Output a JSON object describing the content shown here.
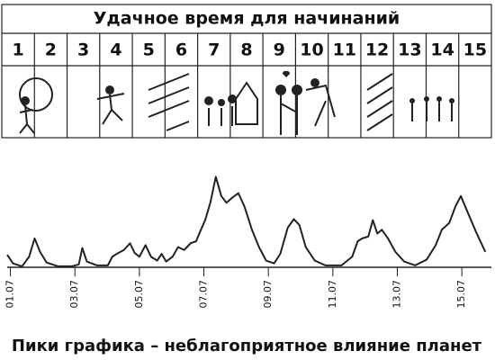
{
  "table": {
    "title": "Удачное время для начинаний",
    "days": [
      "1",
      "2",
      "3",
      "4",
      "5",
      "6",
      "7",
      "8",
      "9",
      "10",
      "11",
      "12",
      "13",
      "14",
      "15"
    ]
  },
  "chart_data": {
    "type": "line",
    "caption": "Пики графика – неблагоприятное влияние планет",
    "x": [
      0.9,
      1.08,
      1.36,
      1.58,
      1.75,
      1.92,
      2.12,
      2.48,
      2.9,
      3.12,
      3.23,
      3.37,
      3.68,
      4.02,
      4.16,
      4.3,
      4.52,
      4.71,
      4.85,
      5.0,
      5.19,
      5.36,
      5.55,
      5.69,
      5.83,
      6.03,
      6.2,
      6.39,
      6.59,
      6.76,
      6.87,
      7.04,
      7.2,
      7.37,
      7.54,
      7.7,
      7.87,
      8.07,
      8.26,
      8.49,
      8.71,
      8.93,
      9.18,
      9.37,
      9.6,
      9.79,
      9.96,
      10.16,
      10.44,
      10.77,
      11.27,
      11.6,
      11.77,
      11.91,
      12.1,
      12.24,
      12.38,
      12.52,
      12.71,
      12.94,
      13.21,
      13.55,
      13.91,
      14.19,
      14.38,
      14.61,
      14.8,
      14.97,
      15.17,
      15.45,
      15.73
    ],
    "series": [
      {
        "color": "#222222",
        "values": [
          13,
          4,
          1,
          11,
          30,
          16,
          5,
          1,
          1,
          3,
          20,
          6,
          2,
          2,
          11,
          14,
          18,
          25,
          15,
          11,
          23,
          11,
          7,
          14,
          6,
          11,
          21,
          18,
          25,
          27,
          36,
          49,
          67,
          94,
          74,
          67,
          72,
          77,
          63,
          39,
          21,
          7,
          4,
          14,
          41,
          50,
          44,
          21,
          7,
          2,
          2,
          11,
          27,
          30,
          32,
          49,
          35,
          39,
          30,
          16,
          6,
          2,
          8,
          23,
          39,
          46,
          63,
          74,
          58,
          36,
          16
        ]
      }
    ],
    "xlim": [
      0.9,
      15.75
    ],
    "ylim": [
      0,
      100
    ],
    "xticks": [
      {
        "value": 1,
        "label": "01.07"
      },
      {
        "value": 3,
        "label": "03.07"
      },
      {
        "value": 5,
        "label": "05.07"
      },
      {
        "value": 7,
        "label": "07.07"
      },
      {
        "value": 9,
        "label": "09.07"
      },
      {
        "value": 11,
        "label": "11.07"
      },
      {
        "value": 13,
        "label": "13.07"
      },
      {
        "value": 15,
        "label": "15.07"
      }
    ]
  }
}
